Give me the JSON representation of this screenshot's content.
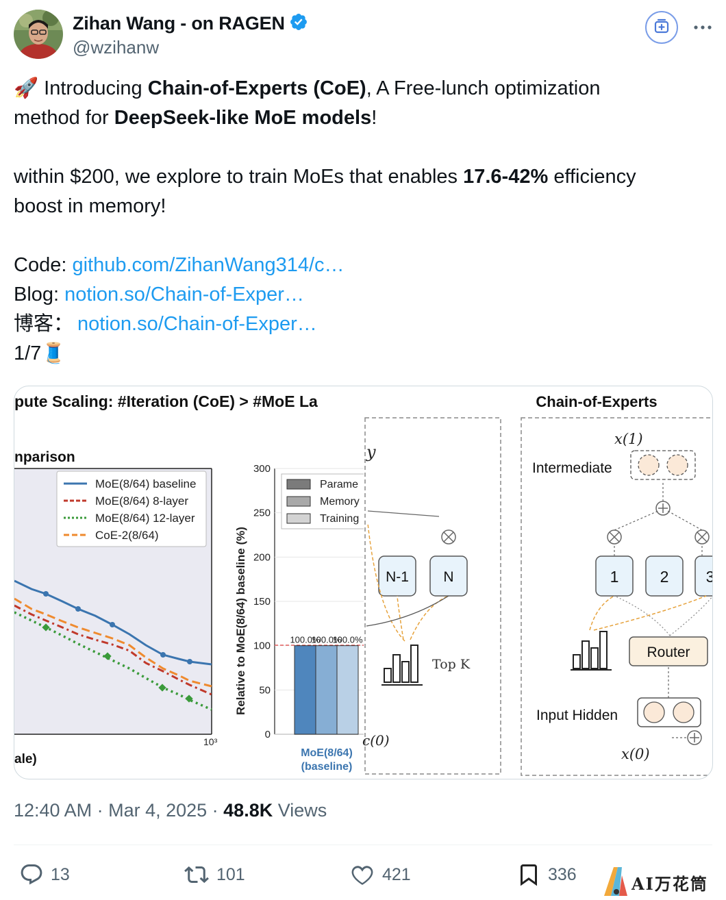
{
  "author": {
    "display_name": "Zihan Wang - on RAGEN",
    "handle": "@wzihanw",
    "verified": true,
    "avatar_icon": "profile-photo"
  },
  "header": {
    "grok_icon": "grok-plus-icon",
    "more_icon": "more-dots-icon"
  },
  "tweet": {
    "line1_emoji": "🚀",
    "line1_a": " Introducing ",
    "line1_bold": "Chain-of-Experts (CoE)",
    "line1_b": ", A Free-lunch optimization",
    "line2_a": "method for ",
    "line2_bold": "DeepSeek-like MoE models",
    "line2_b": "!",
    "line3_a": "within $200, we explore to train MoEs that enables ",
    "line3_bold": "17.6-42%",
    "line3_b": " efficiency",
    "line4": "boost in memory!",
    "code_label": "Code: ",
    "code_link": "github.com/ZihanWang314/c…",
    "blog_label": "Blog: ",
    "blog_link": "notion.so/Chain-of-Exper…",
    "cn_label": "博客：",
    "cn_link": "notion.so/Chain-of-Exper…",
    "thread_counter": "1/7",
    "thread_emoji": "🧵"
  },
  "media": {
    "left_title": "pute Scaling: #Iteration (CoE) > #MoE La",
    "left_subtitle": "nparison",
    "left_xlabel": "ale)",
    "left_xtick": "10³",
    "legend": [
      "MoE(8/64) baseline",
      "MoE(8/64) 8-layer",
      "MoE(8/64) 12-layer",
      "CoE-2(8/64)"
    ],
    "legend_colors": [
      "#3b75af",
      "#c0392b",
      "#3a9a3a",
      "#ef8a2e"
    ],
    "bar_ylabel": "Relative to MoE(8/64) baseline (%)",
    "bar_yticks": [
      "300",
      "250",
      "200",
      "150",
      "100",
      "50",
      "0"
    ],
    "bar_legend": [
      "Parame",
      "Memory",
      "Training"
    ],
    "bar_value_labels": [
      "100.0%",
      "100.0%",
      "100.0%"
    ],
    "bar_category": [
      "MoE(8/64)",
      "(baseline)"
    ],
    "moe_y": "y",
    "moe_experts": [
      "N-1",
      "N"
    ],
    "moe_topk": "Top K",
    "moe_x0": "c(0)",
    "coe_title": "Chain-of-Experts",
    "coe_x1": "x(1)",
    "coe_intermediate": "Intermediate",
    "coe_experts": [
      "1",
      "2",
      "3"
    ],
    "coe_router": "Router",
    "coe_input": "Input Hidden",
    "coe_x0": "x(0)"
  },
  "chart_data": {
    "type": "bar",
    "categories": [
      "MoE(8/64)\n(baseline)"
    ],
    "series": [
      {
        "name": "Parame",
        "values": [
          100
        ]
      },
      {
        "name": "Memory",
        "values": [
          100
        ]
      },
      {
        "name": "Training",
        "values": [
          100
        ]
      }
    ],
    "ylabel": "Relative to MoE(8/64) baseline (%)",
    "ylim": [
      0,
      300
    ],
    "reference_line": 100
  },
  "meta": {
    "time": "12:40 AM · Mar 4, 2025 · ",
    "views_count": "48.8K",
    "views_label": " Views"
  },
  "actions": {
    "reply_count": "13",
    "retweet_count": "101",
    "like_count": "421",
    "bookmark_count": "336"
  },
  "watermark": {
    "text": "AI万花筒"
  }
}
